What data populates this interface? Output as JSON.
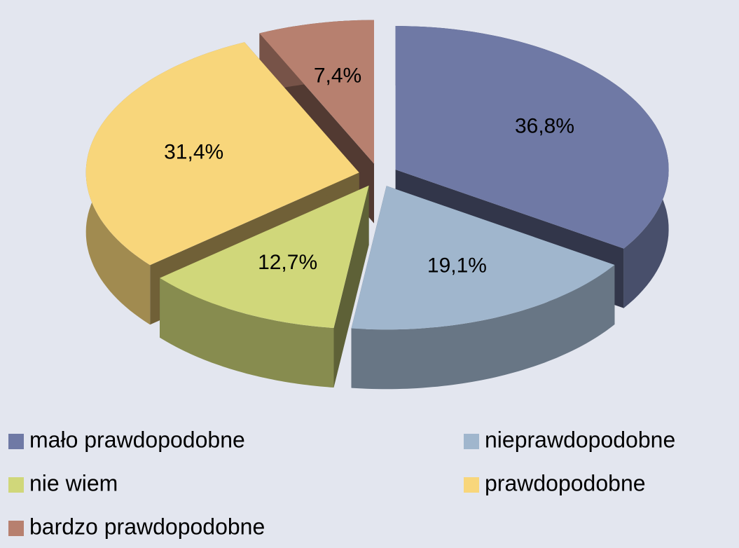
{
  "chart_data": {
    "type": "pie3d",
    "categories": [
      "mało prawdopodobne",
      "nieprawdopodobne",
      "nie wiem",
      "prawdopodobne",
      "bardzo prawdopodobne"
    ],
    "values": [
      36.8,
      19.1,
      12.7,
      31.4,
      7.4
    ],
    "value_labels": [
      "36,8%",
      "19,1%",
      "12,7%",
      "31,4%",
      "7,4%"
    ],
    "colors": [
      "#6f79a5",
      "#a0b6cd",
      "#d0d77a",
      "#f8d67b",
      "#b7806f"
    ],
    "legend": "bottom"
  }
}
